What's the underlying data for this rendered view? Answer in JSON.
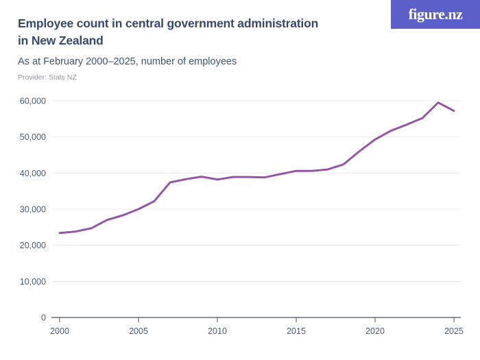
{
  "header": {
    "title_line1": "Employee count in central government administration",
    "title_line2": "in New Zealand",
    "subtitle": "As at February 2000–2025, number of employees",
    "provider": "Provider: Stats NZ",
    "logo_text": "figure.nz"
  },
  "colors": {
    "brand": "#5b5fc7",
    "line": "#9455a5",
    "title_text": "#34496b",
    "subtitle_text": "#3d5472",
    "provider_text": "#8f959c",
    "axis_text": "#47597c",
    "gridline": "#ececec",
    "axis_line": "#666c77"
  },
  "chart_data": {
    "type": "line",
    "title": "Employee count in central government administration in New Zealand",
    "subtitle": "As at February 2000–2025, number of employees",
    "xlabel": "",
    "ylabel": "",
    "x": [
      2000,
      2001,
      2002,
      2003,
      2004,
      2005,
      2006,
      2007,
      2008,
      2009,
      2010,
      2011,
      2012,
      2013,
      2014,
      2015,
      2016,
      2017,
      2018,
      2019,
      2020,
      2021,
      2022,
      2023,
      2024,
      2025
    ],
    "series": [
      {
        "name": "Number of employees",
        "values": [
          23400,
          23800,
          24700,
          27000,
          28300,
          30000,
          32200,
          37400,
          38300,
          39000,
          38200,
          38900,
          38900,
          38800,
          39700,
          40600,
          40600,
          41000,
          42400,
          46000,
          49300,
          51700,
          53400,
          55200,
          59500,
          57200
        ]
      }
    ],
    "xlim": [
      2000,
      2025
    ],
    "ylim": [
      0,
      60000
    ],
    "xticks": [
      2000,
      2005,
      2010,
      2015,
      2020,
      2025
    ],
    "yticks": [
      0,
      10000,
      20000,
      30000,
      40000,
      50000,
      60000
    ],
    "grid": true,
    "legend": false
  }
}
